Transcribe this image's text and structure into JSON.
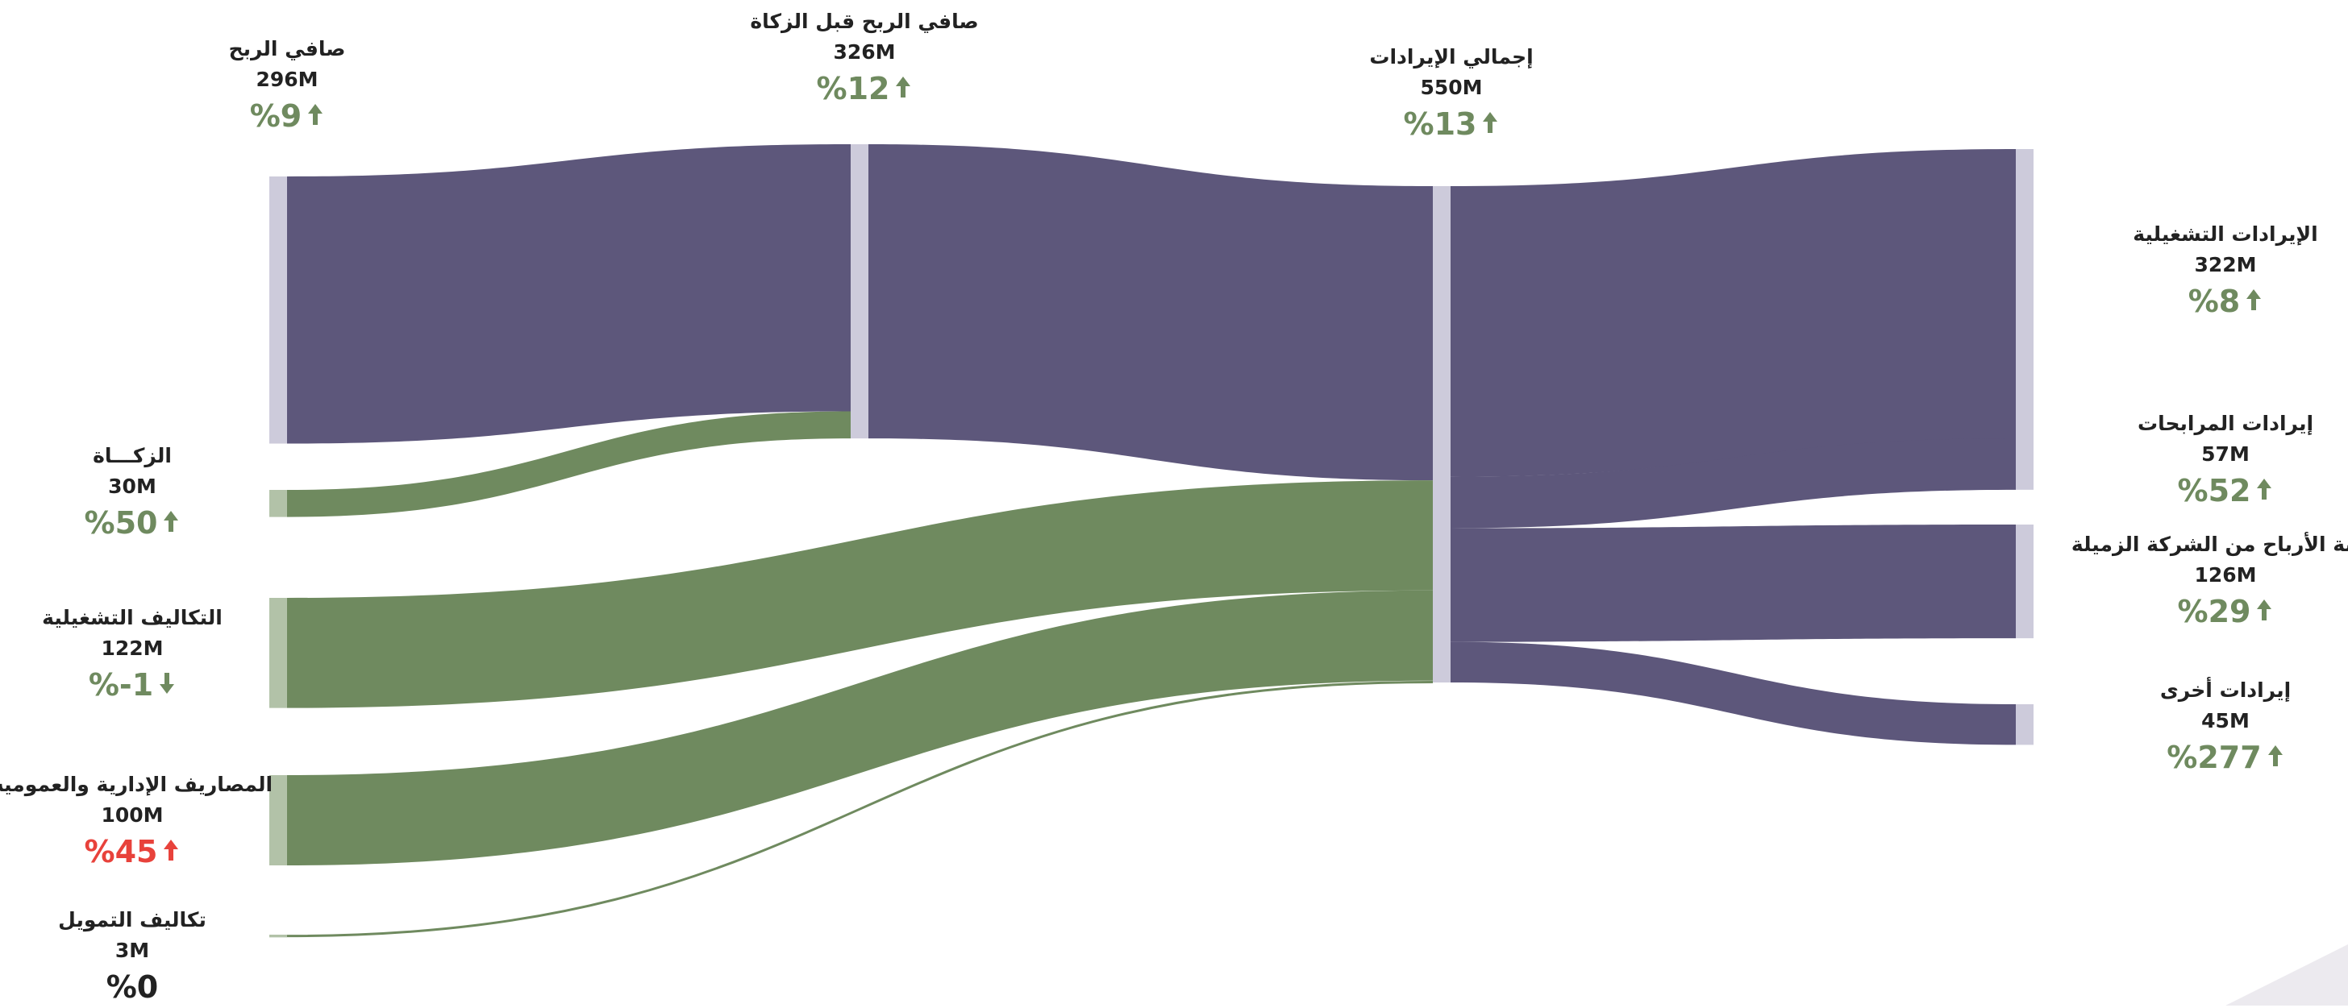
{
  "colors": {
    "purple": "#5d577b",
    "green": "#6f8a5f",
    "node_gray": "#cdcbdb",
    "node_green": "#b2c2a8",
    "up_green": "#6f8a5f",
    "up_red": "#e8423b",
    "neutral": "#222222"
  },
  "chart_data": {
    "type": "sankey",
    "unit": "M",
    "nodes": [
      {
        "id": "net_profit",
        "label": "صافي الربح",
        "value_label": "296M",
        "value": 296,
        "change_label": "%9",
        "change_dir": "up",
        "change_color": "green"
      },
      {
        "id": "zakat",
        "label": "الزكـــاة",
        "value_label": "30M",
        "value": 30,
        "change_label": "%50",
        "change_dir": "up",
        "change_color": "green"
      },
      {
        "id": "opex",
        "label": "التكاليف التشغيلية",
        "value_label": "122M",
        "value": 122,
        "change_label": "%-1",
        "change_dir": "down",
        "change_color": "green"
      },
      {
        "id": "admin",
        "label": "المصاريف الإدارية والعمومية",
        "value_label": "100M",
        "value": 100,
        "change_label": "%45",
        "change_dir": "up",
        "change_color": "red"
      },
      {
        "id": "finance",
        "label": "تكاليف التمويل",
        "value_label": "3M",
        "value": 3,
        "change_label": "%0",
        "change_dir": "none",
        "change_color": "neutral"
      },
      {
        "id": "pre_zakat",
        "label": "صافي الربح قبل الزكاة",
        "value_label": "326M",
        "value": 326,
        "change_label": "%12",
        "change_dir": "up",
        "change_color": "green"
      },
      {
        "id": "total_rev",
        "label": "إجمالي الإيرادات",
        "value_label": "550M",
        "value": 550,
        "change_label": "%13",
        "change_dir": "up",
        "change_color": "green"
      },
      {
        "id": "op_rev",
        "label": "الإيرادات التشغيلية",
        "value_label": "322M",
        "value": 322,
        "change_label": "%8",
        "change_dir": "up",
        "change_color": "green"
      },
      {
        "id": "murabaha",
        "label": "إيرادات المرابحات",
        "value_label": "57M",
        "value": 57,
        "change_label": "%52",
        "change_dir": "up",
        "change_color": "green"
      },
      {
        "id": "associate",
        "label": "حصة الأرباح من الشركة الزميلة",
        "value_label": "126M",
        "value": 126,
        "change_label": "%29",
        "change_dir": "up",
        "change_color": "green"
      },
      {
        "id": "other_rev",
        "label": "إيرادات أخرى",
        "value_label": "45M",
        "value": 45,
        "change_label": "%277",
        "change_dir": "up",
        "change_color": "green"
      }
    ],
    "links": [
      {
        "source": "op_rev",
        "target": "total_rev",
        "value": 322,
        "color": "purple"
      },
      {
        "source": "murabaha",
        "target": "total_rev",
        "value": 57,
        "color": "purple"
      },
      {
        "source": "associate",
        "target": "total_rev",
        "value": 126,
        "color": "purple"
      },
      {
        "source": "other_rev",
        "target": "total_rev",
        "value": 45,
        "color": "purple"
      },
      {
        "source": "total_rev",
        "target": "pre_zakat",
        "value": 326,
        "color": "purple"
      },
      {
        "source": "total_rev",
        "target": "opex",
        "value": 122,
        "color": "green"
      },
      {
        "source": "total_rev",
        "target": "admin",
        "value": 100,
        "color": "green"
      },
      {
        "source": "total_rev",
        "target": "finance",
        "value": 3,
        "color": "green"
      },
      {
        "source": "pre_zakat",
        "target": "net_profit",
        "value": 296,
        "color": "purple"
      },
      {
        "source": "pre_zakat",
        "target": "zakat",
        "value": 30,
        "color": "green"
      }
    ]
  }
}
